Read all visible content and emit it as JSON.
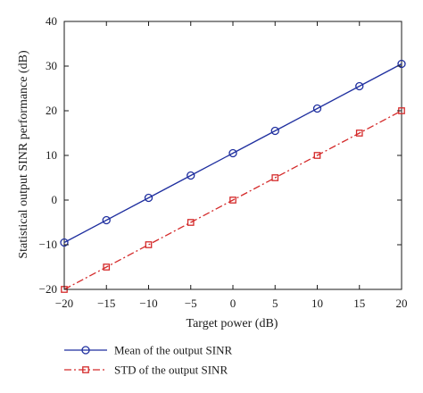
{
  "chart_data": {
    "type": "line",
    "title": "",
    "xlabel": "Target power (dB)",
    "ylabel": "Statistical output SINR performance (dB)",
    "xlim": [
      -20,
      20
    ],
    "ylim": [
      -20,
      40
    ],
    "xticks": [
      -20,
      -15,
      -10,
      -5,
      0,
      5,
      10,
      15,
      20
    ],
    "yticks": [
      -20,
      -10,
      0,
      10,
      20,
      30,
      40
    ],
    "x": [
      -20,
      -15,
      -10,
      -5,
      0,
      5,
      10,
      15,
      20
    ],
    "grid": false,
    "legend_position": "bottom, below plot",
    "series": [
      {
        "name": "Mean of the output SINR",
        "values": [
          -9.5,
          -4.5,
          0.5,
          5.5,
          10.5,
          15.5,
          20.5,
          25.5,
          30.5
        ],
        "color": "#1f2f9f",
        "line_style": "solid",
        "marker": "circle"
      },
      {
        "name": "STD of the output SINR",
        "values": [
          -20,
          -15,
          -10,
          -5,
          0,
          5,
          10,
          15,
          20
        ],
        "color": "#d42a2a",
        "line_style": "dash-dot",
        "marker": "square"
      }
    ]
  }
}
